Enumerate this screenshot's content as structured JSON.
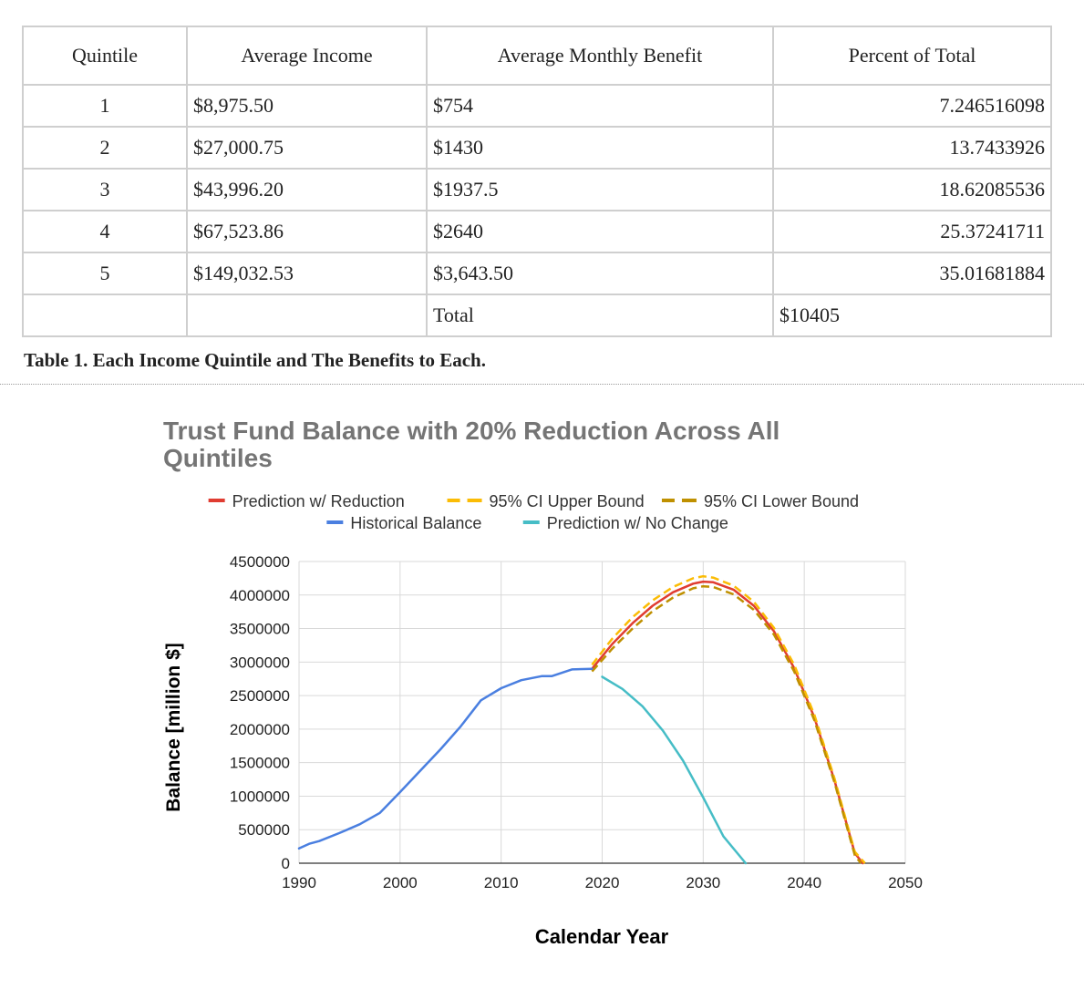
{
  "table": {
    "headers": [
      "Quintile",
      "Average Income",
      "Average Monthly Benefit",
      "Percent of Total"
    ],
    "rows": [
      [
        "1",
        "$8,975.50",
        "$754",
        "7.246516098"
      ],
      [
        "2",
        "$27,000.75",
        "$1430",
        "13.7433926"
      ],
      [
        "3",
        "$43,996.20",
        "$1937.5",
        "18.62085536"
      ],
      [
        "4",
        "$67,523.86",
        "$2640",
        "25.37241711"
      ],
      [
        "5",
        "$149,032.53",
        "$3,643.50",
        "35.01681884"
      ],
      [
        "",
        "",
        "Total",
        "$10405"
      ]
    ],
    "caption": "Table 1. Each Income Quintile and The Benefits to Each."
  },
  "chart_data": {
    "type": "line",
    "title_line1": "Trust Fund Balance with 20% Reduction Across All",
    "title_line2": "Quintiles",
    "xlabel": "Calendar Year",
    "ylabel": "Balance [million $]",
    "xlim": [
      1990,
      2050
    ],
    "ylim": [
      0,
      4500000
    ],
    "xticks": [
      "1990",
      "2000",
      "2010",
      "2020",
      "2030",
      "2040",
      "2050"
    ],
    "yticks": [
      "0",
      "500000",
      "1000000",
      "1500000",
      "2000000",
      "2500000",
      "3000000",
      "3500000",
      "4000000",
      "4500000"
    ],
    "legend_placement": "top",
    "grid": true,
    "series": [
      {
        "name": "Prediction w/ Reduction",
        "color": "#e03c31",
        "style": "solid",
        "x": [
          2019,
          2021,
          2023,
          2025,
          2027,
          2029,
          2030,
          2031,
          2033,
          2035,
          2037,
          2039,
          2041,
          2043,
          2045,
          2045.8
        ],
        "y": [
          2900000,
          3270000,
          3580000,
          3840000,
          4040000,
          4170000,
          4200000,
          4190000,
          4080000,
          3840000,
          3460000,
          2910000,
          2170000,
          1230000,
          150000,
          0
        ]
      },
      {
        "name": "95% CI Upper Bound",
        "color": "#fbbc05",
        "style": "dashed",
        "x": [
          2019,
          2021,
          2023,
          2025,
          2027,
          2029,
          2030,
          2031,
          2033,
          2035,
          2037,
          2039,
          2041,
          2043,
          2045,
          2046
        ],
        "y": [
          2960000,
          3350000,
          3670000,
          3920000,
          4120000,
          4250000,
          4280000,
          4260000,
          4140000,
          3900000,
          3510000,
          2960000,
          2210000,
          1260000,
          170000,
          0
        ]
      },
      {
        "name": "95% CI Lower Bound",
        "color": "#bf9000",
        "style": "dashed",
        "x": [
          2019,
          2021,
          2023,
          2025,
          2027,
          2029,
          2030,
          2031,
          2033,
          2035,
          2037,
          2039,
          2041,
          2043,
          2045,
          2045.6
        ],
        "y": [
          2860000,
          3200000,
          3500000,
          3760000,
          3960000,
          4100000,
          4130000,
          4120000,
          4010000,
          3780000,
          3410000,
          2860000,
          2130000,
          1200000,
          120000,
          0
        ]
      },
      {
        "name": "Historical Balance",
        "color": "#4a7fe0",
        "style": "solid",
        "x": [
          1990,
          1991,
          1992,
          1994,
          1996,
          1998,
          2000,
          2002,
          2004,
          2006,
          2008,
          2010,
          2012,
          2014,
          2015,
          2017,
          2019
        ],
        "y": [
          220000,
          290000,
          330000,
          450000,
          580000,
          750000,
          1060000,
          1380000,
          1700000,
          2040000,
          2430000,
          2610000,
          2730000,
          2790000,
          2790000,
          2890000,
          2900000
        ]
      },
      {
        "name": "Prediction w/ No Change",
        "color": "#46bdc6",
        "style": "solid",
        "x": [
          2020,
          2022,
          2024,
          2026,
          2028,
          2030,
          2032,
          2034.2
        ],
        "y": [
          2780000,
          2600000,
          2340000,
          1980000,
          1530000,
          980000,
          400000,
          0
        ]
      }
    ]
  }
}
